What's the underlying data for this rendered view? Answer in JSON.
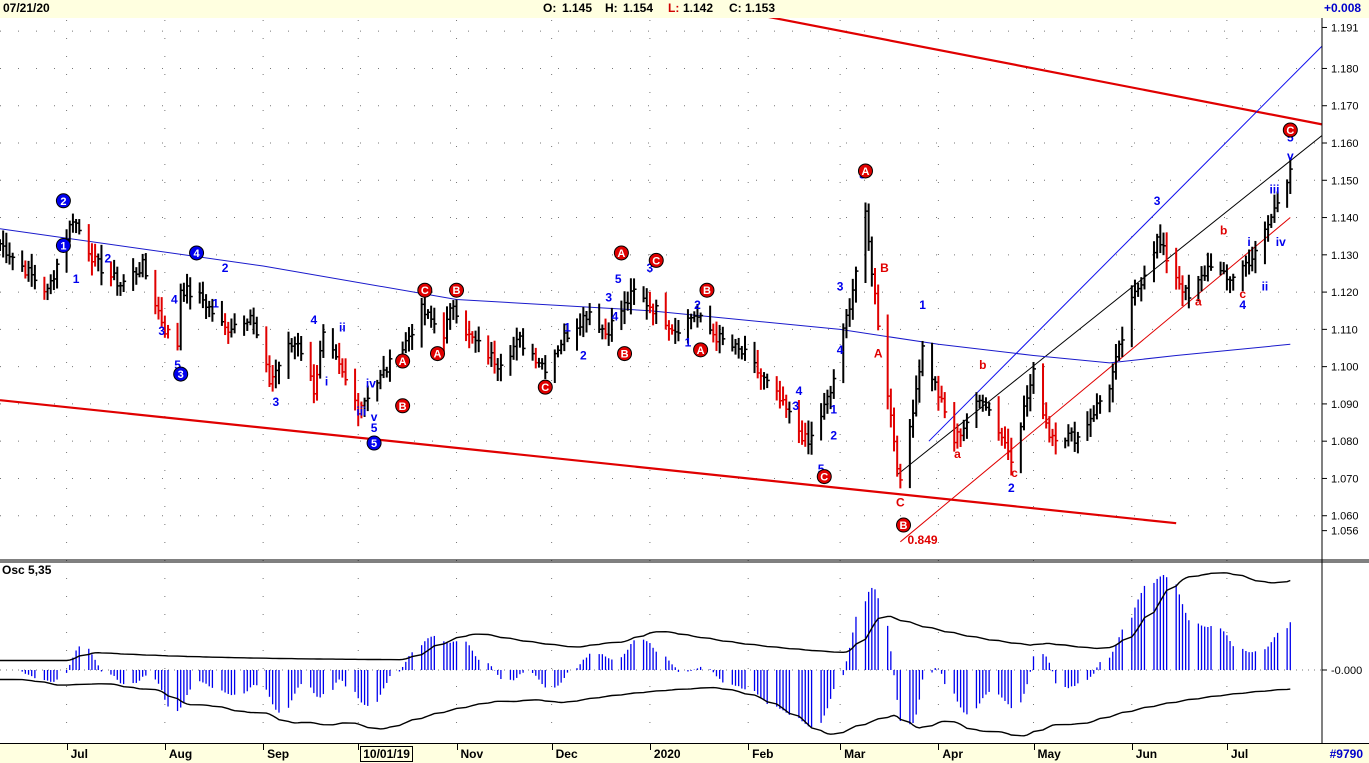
{
  "header": {
    "date": "07/21/20",
    "open_label": "O:",
    "open": "1.145",
    "high_label": "H:",
    "high": "1.154",
    "low_label": "L:",
    "low": "1.142",
    "close_label": "C:",
    "close": "1.153",
    "change": "+0.008"
  },
  "footer": {
    "months": [
      "Jul",
      "Aug",
      "Sep",
      "10/01/19",
      "Nov",
      "Dec",
      "2020",
      "Feb",
      "Mar",
      "Apr",
      "May",
      "Jun",
      "Jul"
    ],
    "serial": "#9790"
  },
  "colors": {
    "up": "#000000",
    "down": "#e00000",
    "wave_blue": "#0000ff",
    "wave_red": "#e00000",
    "osc": "#0000ee",
    "panel_bg": "#ffffe0"
  },
  "chart_data": [
    {
      "type": "bar",
      "name": "OHLC price chart",
      "x": [
        "2019-06-10",
        "2019-07-01",
        "2019-08-01",
        "2019-09-01",
        "2019-10-01",
        "2019-11-01",
        "2019-12-01",
        "2020-01-01",
        "2020-02-01",
        "2020-03-01",
        "2020-04-01",
        "2020-05-01",
        "2020-06-01",
        "2020-07-01",
        "2020-07-21"
      ],
      "ylim": [
        1.05,
        1.193
      ],
      "yticks": [
        "1.060",
        "1.070",
        "1.080",
        "1.090",
        "1.100",
        "1.110",
        "1.120",
        "1.130",
        "1.140",
        "1.150",
        "1.160",
        "1.170",
        "1.180",
        "1.190"
      ],
      "ytick_labels": [
        "1.056",
        "1.060",
        "1.070",
        "1.080",
        "1.090",
        "1.100",
        "1.110",
        "1.120",
        "1.130",
        "1.140",
        "1.150",
        "1.160",
        "1.170",
        "1.180",
        "1.191"
      ],
      "grid": true,
      "anchors": [
        {
          "d": "2019-06-10",
          "v": 1.133
        },
        {
          "d": "2019-06-25",
          "v": 1.12
        },
        {
          "d": "2019-07-03",
          "v": 1.14
        },
        {
          "d": "2019-07-10",
          "v": 1.128
        },
        {
          "d": "2019-07-18",
          "v": 1.122
        },
        {
          "d": "2019-07-25",
          "v": 1.127
        },
        {
          "d": "2019-08-01",
          "v": 1.11
        },
        {
          "d": "2019-08-05",
          "v": 1.106
        },
        {
          "d": "2019-08-06",
          "v": 1.121
        },
        {
          "d": "2019-08-13",
          "v": 1.118
        },
        {
          "d": "2019-08-20",
          "v": 1.11
        },
        {
          "d": "2019-08-28",
          "v": 1.114
        },
        {
          "d": "2019-09-03",
          "v": 1.096
        },
        {
          "d": "2019-09-09",
          "v": 1.105
        },
        {
          "d": "2019-09-12",
          "v": 1.107
        },
        {
          "d": "2019-09-17",
          "v": 1.094
        },
        {
          "d": "2019-09-20",
          "v": 1.108
        },
        {
          "d": "2019-09-27",
          "v": 1.096
        },
        {
          "d": "2019-10-01",
          "v": 1.089
        },
        {
          "d": "2019-10-07",
          "v": 1.096
        },
        {
          "d": "2019-10-15",
          "v": 1.105
        },
        {
          "d": "2019-10-21",
          "v": 1.115
        },
        {
          "d": "2019-10-28",
          "v": 1.109
        },
        {
          "d": "2019-10-31",
          "v": 1.117
        },
        {
          "d": "2019-11-05",
          "v": 1.108
        },
        {
          "d": "2019-11-14",
          "v": 1.101
        },
        {
          "d": "2019-11-21",
          "v": 1.107
        },
        {
          "d": "2019-11-29",
          "v": 1.1
        },
        {
          "d": "2019-12-05",
          "v": 1.108
        },
        {
          "d": "2019-12-13",
          "v": 1.115
        },
        {
          "d": "2019-12-18",
          "v": 1.109
        },
        {
          "d": "2019-12-27",
          "v": 1.12
        },
        {
          "d": "2020-01-03",
          "v": 1.115
        },
        {
          "d": "2020-01-09",
          "v": 1.11
        },
        {
          "d": "2020-01-15",
          "v": 1.114
        },
        {
          "d": "2020-01-22",
          "v": 1.108
        },
        {
          "d": "2020-01-31",
          "v": 1.103
        },
        {
          "d": "2020-02-10",
          "v": 1.092
        },
        {
          "d": "2020-02-20",
          "v": 1.079
        },
        {
          "d": "2020-02-27",
          "v": 1.093
        },
        {
          "d": "2020-03-05",
          "v": 1.121
        },
        {
          "d": "2020-03-09",
          "v": 1.14
        },
        {
          "d": "2020-03-13",
          "v": 1.112
        },
        {
          "d": "2020-03-20",
          "v": 1.068
        },
        {
          "d": "2020-03-27",
          "v": 1.105
        },
        {
          "d": "2020-04-06",
          "v": 1.08
        },
        {
          "d": "2020-04-15",
          "v": 1.092
        },
        {
          "d": "2020-04-24",
          "v": 1.076
        },
        {
          "d": "2020-05-01",
          "v": 1.098
        },
        {
          "d": "2020-05-06",
          "v": 1.082
        },
        {
          "d": "2020-05-15",
          "v": 1.081
        },
        {
          "d": "2020-05-25",
          "v": 1.095
        },
        {
          "d": "2020-06-01",
          "v": 1.117
        },
        {
          "d": "2020-06-09",
          "v": 1.134
        },
        {
          "d": "2020-06-19",
          "v": 1.118
        },
        {
          "d": "2020-06-26",
          "v": 1.128
        },
        {
          "d": "2020-07-01",
          "v": 1.123
        },
        {
          "d": "2020-07-10",
          "v": 1.13
        },
        {
          "d": "2020-07-15",
          "v": 1.14
        },
        {
          "d": "2020-07-21",
          "v": 1.153
        }
      ],
      "moving_average": [
        {
          "d": "2019-06-10",
          "v": 1.137
        },
        {
          "d": "2019-09-01",
          "v": 1.127
        },
        {
          "d": "2019-11-01",
          "v": 1.118
        },
        {
          "d": "2020-01-01",
          "v": 1.115
        },
        {
          "d": "2020-03-01",
          "v": 1.11
        },
        {
          "d": "2020-04-01",
          "v": 1.106
        },
        {
          "d": "2020-05-01",
          "v": 1.103
        },
        {
          "d": "2020-05-25",
          "v": 1.101
        },
        {
          "d": "2020-06-15",
          "v": 1.103
        },
        {
          "d": "2020-07-21",
          "v": 1.106
        }
      ],
      "trendlines": [
        {
          "color": "red",
          "points": [
            {
              "d": "2019-06-10",
              "v": 1.091
            },
            {
              "d": "2020-06-15",
              "v": 1.058
            }
          ]
        },
        {
          "color": "red",
          "points": [
            {
              "d": "2020-01-01",
              "v": 1.2
            },
            {
              "d": "2020-07-31",
              "v": 1.165
            }
          ]
        },
        {
          "color": "blue",
          "points": [
            {
              "d": "2020-03-29",
              "v": 1.08
            },
            {
              "d": "2020-07-31",
              "v": 1.186
            }
          ]
        },
        {
          "color": "black",
          "points": [
            {
              "d": "2020-03-19",
              "v": 1.071
            },
            {
              "d": "2020-07-31",
              "v": 1.162
            }
          ]
        },
        {
          "color": "red",
          "points": [
            {
              "d": "2020-03-20",
              "v": 1.053
            },
            {
              "d": "2020-07-21",
              "v": 1.14
            }
          ]
        }
      ],
      "annotations_blue": [
        {
          "t": "2",
          "d": "2019-06-30",
          "v": 1.1445,
          "circle": true
        },
        {
          "t": "1",
          "d": "2019-06-30",
          "v": 1.1325,
          "circle": true
        },
        {
          "t": "1",
          "d": "2019-07-04",
          "v": 1.1235
        },
        {
          "t": "2",
          "d": "2019-07-14",
          "v": 1.129
        },
        {
          "t": "3",
          "d": "2019-07-31",
          "v": 1.1095
        },
        {
          "t": "4",
          "d": "2019-08-04",
          "v": 1.118
        },
        {
          "t": "5",
          "d": "2019-08-05",
          "v": 1.1005
        },
        {
          "t": "3",
          "d": "2019-08-06",
          "v": 1.098,
          "circle": true
        },
        {
          "t": "4",
          "d": "2019-08-11",
          "v": 1.1305,
          "circle": true
        },
        {
          "t": "2",
          "d": "2019-08-20",
          "v": 1.1265
        },
        {
          "t": "1",
          "d": "2019-08-17",
          "v": 1.117
        },
        {
          "t": "3",
          "d": "2019-09-05",
          "v": 1.0905
        },
        {
          "t": "4",
          "d": "2019-09-17",
          "v": 1.1125
        },
        {
          "t": "ii",
          "d": "2019-09-26",
          "v": 1.1105
        },
        {
          "t": "i",
          "d": "2019-09-21",
          "v": 1.096
        },
        {
          "t": "iv",
          "d": "2019-10-05",
          "v": 1.0955
        },
        {
          "t": "iii",
          "d": "2019-10-02",
          "v": 1.088
        },
        {
          "t": "v",
          "d": "2019-10-06",
          "v": 1.0865
        },
        {
          "t": "5",
          "d": "2019-10-06",
          "v": 1.0835
        },
        {
          "t": "5",
          "d": "2019-10-06",
          "v": 1.0795,
          "circle": true
        },
        {
          "t": "1",
          "d": "2019-12-06",
          "v": 1.1105
        },
        {
          "t": "2",
          "d": "2019-12-11",
          "v": 1.103
        },
        {
          "t": "3",
          "d": "2019-12-19",
          "v": 1.1185
        },
        {
          "t": "4",
          "d": "2019-12-21",
          "v": 1.1135
        },
        {
          "t": "5",
          "d": "2019-12-22",
          "v": 1.1235
        },
        {
          "t": "3",
          "d": "2020-01-01",
          "v": 1.1265
        },
        {
          "t": "2",
          "d": "2020-01-16",
          "v": 1.1165
        },
        {
          "t": "1",
          "d": "2020-01-13",
          "v": 1.1065
        },
        {
          "t": "4",
          "d": "2020-02-17",
          "v": 1.0935
        },
        {
          "t": "3",
          "d": "2020-02-16",
          "v": 1.0895
        },
        {
          "t": "1",
          "d": "2020-02-28",
          "v": 1.0885
        },
        {
          "t": "2",
          "d": "2020-02-28",
          "v": 1.0815
        },
        {
          "t": "5",
          "d": "2020-02-24",
          "v": 1.0725
        },
        {
          "t": "3",
          "d": "2020-03-01",
          "v": 1.1215
        },
        {
          "t": "4",
          "d": "2020-03-01",
          "v": 1.1045
        },
        {
          "t": "5",
          "d": "2020-03-08",
          "v": 1.1515
        },
        {
          "t": "1",
          "d": "2020-03-27",
          "v": 1.1165
        },
        {
          "t": "2",
          "d": "2020-04-24",
          "v": 1.0675
        },
        {
          "t": "3",
          "d": "2020-06-09",
          "v": 1.1445
        },
        {
          "t": "4",
          "d": "2020-07-06",
          "v": 1.1165
        },
        {
          "t": "i",
          "d": "2020-07-08",
          "v": 1.1335
        },
        {
          "t": "ii",
          "d": "2020-07-13",
          "v": 1.1215
        },
        {
          "t": "iii",
          "d": "2020-07-16",
          "v": 1.1475
        },
        {
          "t": "iv",
          "d": "2020-07-18",
          "v": 1.1335
        },
        {
          "t": "5",
          "d": "2020-07-21",
          "v": 1.1615
        },
        {
          "t": "v",
          "d": "2020-07-21",
          "v": 1.1565
        }
      ],
      "annotations_red": [
        {
          "t": "A",
          "d": "2019-10-15",
          "v": 1.1015,
          "circle": true
        },
        {
          "t": "B",
          "d": "2019-10-15",
          "v": 1.0895,
          "circle": true
        },
        {
          "t": "C",
          "d": "2019-10-22",
          "v": 1.1205,
          "circle": true
        },
        {
          "t": "A",
          "d": "2019-10-26",
          "v": 1.1035,
          "circle": true
        },
        {
          "t": "B",
          "d": "2019-11-01",
          "v": 1.1205,
          "circle": true
        },
        {
          "t": "C",
          "d": "2019-11-29",
          "v": 1.0945,
          "circle": true
        },
        {
          "t": "A",
          "d": "2019-12-23",
          "v": 1.1305,
          "circle": true
        },
        {
          "t": "B",
          "d": "2019-12-24",
          "v": 1.1035,
          "circle": true
        },
        {
          "t": "C",
          "d": "2020-01-03",
          "v": 1.1285,
          "circle": true
        },
        {
          "t": "B",
          "d": "2020-01-19",
          "v": 1.1205,
          "circle": true
        },
        {
          "t": "A",
          "d": "2020-01-17",
          "v": 1.1045,
          "circle": true
        },
        {
          "t": "C",
          "d": "2020-02-25",
          "v": 1.0705,
          "circle": true
        },
        {
          "t": "A",
          "d": "2020-03-09",
          "v": 1.1525,
          "circle": true
        },
        {
          "t": "B",
          "d": "2020-03-15",
          "v": 1.1265
        },
        {
          "t": "A",
          "d": "2020-03-13",
          "v": 1.1035
        },
        {
          "t": "C",
          "d": "2020-03-20",
          "v": 1.0635
        },
        {
          "t": "B",
          "d": "2020-03-21",
          "v": 1.0575,
          "circle": true
        },
        {
          "t": "0.849",
          "d": "2020-03-27",
          "v": 1.0535
        },
        {
          "t": "b",
          "d": "2020-04-15",
          "v": 1.1005
        },
        {
          "t": "a",
          "d": "2020-04-07",
          "v": 1.0765
        },
        {
          "t": "c",
          "d": "2020-04-25",
          "v": 1.0715
        },
        {
          "t": "a",
          "d": "2020-06-22",
          "v": 1.1175
        },
        {
          "t": "b",
          "d": "2020-06-30",
          "v": 1.1365
        },
        {
          "t": "c",
          "d": "2020-07-06",
          "v": 1.1195
        },
        {
          "t": "C",
          "d": "2020-07-21",
          "v": 1.1635,
          "circle": true
        }
      ]
    },
    {
      "type": "bar",
      "name": "Oscillator histogram",
      "title": "Osc 5,35",
      "yticks": [
        "-0.000"
      ],
      "note": "oscillator derived from price series (5-period minus 35-period average) with upper/lower envelope lines"
    }
  ]
}
